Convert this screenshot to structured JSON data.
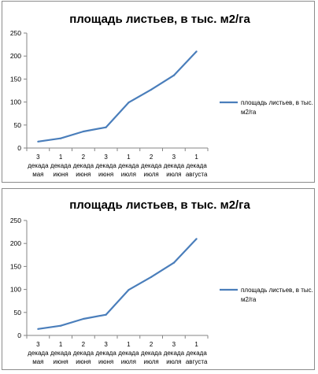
{
  "chart_data": [
    {
      "type": "line",
      "title": "площадь листьев, в тыс. м2/га",
      "categories": [
        [
          "3",
          "декада",
          "мая"
        ],
        [
          "1",
          "декада",
          "июня"
        ],
        [
          "2",
          "декада",
          "июня"
        ],
        [
          "3",
          "декада",
          "июня"
        ],
        [
          "1",
          "декада",
          "июля"
        ],
        [
          "2",
          "декада",
          "июля"
        ],
        [
          "3",
          "декада",
          "июля"
        ],
        [
          "1",
          "декада",
          "августа"
        ]
      ],
      "series": [
        {
          "name": [
            "площадь листьев, в тыс.",
            "м2/га"
          ],
          "values": [
            14,
            21,
            36,
            45,
            99,
            127,
            158,
            210
          ],
          "color": "#4a7ebb"
        }
      ],
      "y_ticks": [
        "0",
        "50",
        "100",
        "150",
        "200",
        "250"
      ],
      "ylim": [
        0,
        250
      ],
      "grid": false,
      "legend": "right"
    },
    {
      "type": "line",
      "title": "площадь листьев, в тыс. м2/га",
      "categories": [
        [
          "3",
          "декада",
          "мая"
        ],
        [
          "1",
          "декада",
          "июня"
        ],
        [
          "2",
          "декада",
          "июня"
        ],
        [
          "3",
          "декада",
          "июня"
        ],
        [
          "1",
          "декада",
          "июля"
        ],
        [
          "2",
          "декада",
          "июля"
        ],
        [
          "3",
          "декада",
          "июля"
        ],
        [
          "1",
          "декада",
          "августа"
        ]
      ],
      "series": [
        {
          "name": [
            "площадь листьев, в тыс.",
            "м2/га"
          ],
          "values": [
            14,
            21,
            36,
            45,
            99,
            127,
            158,
            210
          ],
          "color": "#4a7ebb"
        }
      ],
      "y_ticks": [
        "0",
        "50",
        "100",
        "150",
        "200",
        "250"
      ],
      "ylim": [
        0,
        250
      ],
      "grid": false,
      "legend": "right"
    }
  ]
}
